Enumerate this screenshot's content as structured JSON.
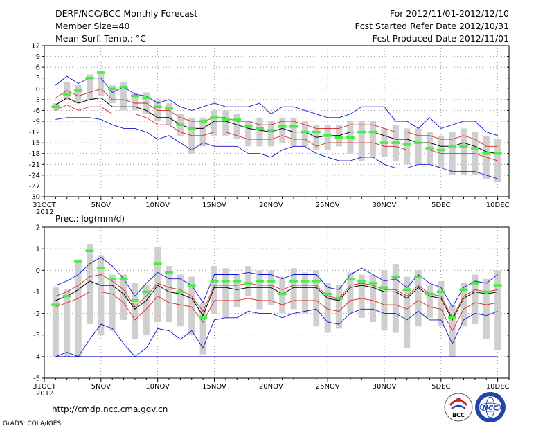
{
  "header": {
    "title": "DERF/NCC/BCC Monthly Forecast",
    "member": "Member Size=40",
    "variable": "Mean Surf. Temp.: °C",
    "period": "For 2012/11/01-2012/12/10",
    "started": "Fcst Started Refer Date 2012/10/31",
    "produced": "Fcst Produced Date 2012/11/01"
  },
  "footer": {
    "url": "http://cmdp.ncc.cma.gov.cn",
    "credit": "GrADS: COLA/IGES",
    "bcc_logo_text": "BCC",
    "ncc_logo_text": "NCC"
  },
  "colors": {
    "box": "#cfcfcf",
    "obs": "#44ee44",
    "mean": "#000000",
    "band": "#dd2222",
    "extreme": "#1111cc",
    "grid": "#777777"
  },
  "chart_data": [
    {
      "type": "line",
      "title": "Mean Surf. Temp.: °C",
      "x_labels": [
        "31OCT",
        "5NOV",
        "10NOV",
        "15NOV",
        "20NOV",
        "25NOV",
        "30NOV",
        "5DEC",
        "10DEC"
      ],
      "x_sub_label": "2012",
      "x_days": [
        0,
        5,
        10,
        15,
        20,
        25,
        30,
        35,
        40
      ],
      "xlim": [
        0,
        41
      ],
      "ylim": [
        -30,
        12
      ],
      "y_ticks": [
        12,
        9,
        6,
        3,
        0,
        -3,
        -6,
        -9,
        -12,
        -15,
        -18,
        -21,
        -24,
        -27,
        -30
      ],
      "days": [
        1,
        2,
        3,
        4,
        5,
        6,
        7,
        8,
        9,
        10,
        11,
        12,
        13,
        14,
        15,
        16,
        17,
        18,
        19,
        20,
        21,
        22,
        23,
        24,
        25,
        26,
        27,
        28,
        29,
        30,
        31,
        32,
        33,
        34,
        35,
        36,
        37,
        38,
        39,
        40
      ],
      "series": [
        {
          "name": "max",
          "values": [
            1,
            3.5,
            1.5,
            3,
            3,
            -1,
            0.5,
            -1.5,
            -2,
            -4,
            -3,
            -5,
            -6,
            -5,
            -4,
            -5,
            -5,
            -5,
            -4,
            -7,
            -5,
            -5,
            -6,
            -7,
            -8,
            -8,
            -7,
            -5,
            -5,
            -5,
            -9,
            -9,
            -11,
            -8,
            -11,
            -10,
            -9,
            -9,
            -12,
            -13
          ]
        },
        {
          "name": "upper",
          "values": [
            -2.5,
            -0.5,
            -2,
            -1,
            0,
            -3,
            -3,
            -4,
            -4,
            -6,
            -6,
            -8,
            -9,
            -9,
            -8,
            -8,
            -9,
            -9,
            -10,
            -10,
            -9,
            -9,
            -10,
            -11,
            -11,
            -11,
            -10,
            -10,
            -10,
            -11,
            -12,
            -12,
            -13,
            -13,
            -14,
            -14,
            -13,
            -14,
            -16,
            -16
          ]
        },
        {
          "name": "mean",
          "values": [
            -4.5,
            -2.5,
            -4,
            -3,
            -2.5,
            -5,
            -5,
            -5,
            -6,
            -8,
            -8,
            -10,
            -11,
            -11,
            -9,
            -9,
            -10,
            -11,
            -11.5,
            -12,
            -11,
            -12,
            -12,
            -13.5,
            -13,
            -13,
            -12,
            -12,
            -12,
            -13,
            -14,
            -14,
            -15,
            -15,
            -16,
            -16,
            -15,
            -16,
            -17.5,
            -18
          ]
        },
        {
          "name": "lower",
          "values": [
            -6,
            -4.5,
            -6,
            -5,
            -5,
            -7,
            -7,
            -7,
            -8,
            -10,
            -10,
            -12,
            -13,
            -13,
            -12,
            -12,
            -13,
            -14,
            -14,
            -14,
            -13,
            -14,
            -14,
            -16,
            -15,
            -15,
            -15,
            -15,
            -15,
            -16,
            -16,
            -17,
            -17,
            -17,
            -18,
            -18,
            -18,
            -18,
            -19,
            -20
          ]
        },
        {
          "name": "min",
          "values": [
            -8.5,
            -8,
            -8,
            -8,
            -8.5,
            -10,
            -11,
            -11,
            -12,
            -14,
            -13,
            -15,
            -17,
            -15,
            -16,
            -16,
            -16,
            -18,
            -18,
            -19,
            -17,
            -16,
            -16,
            -18,
            -19,
            -20,
            -20,
            -19,
            -19,
            -21,
            -22,
            -22,
            -21,
            -21,
            -22,
            -23,
            -23,
            -23,
            -24,
            -25
          ]
        },
        {
          "name": "observed",
          "values": [
            -5,
            -1.5,
            -0.5,
            3,
            4.5,
            0,
            0.5,
            -2,
            -2.5,
            -5,
            -5.5,
            -10,
            -11,
            -9,
            -8,
            -8.5,
            -8.5,
            -10.5,
            -11,
            -11.5,
            -10.5,
            -10.5,
            -12,
            -12,
            -13,
            -13.5,
            -13.5,
            -12,
            -12,
            -15,
            -15,
            -15.5,
            -15,
            -16.5,
            -17,
            -16,
            -16,
            -16.5,
            -18,
            -18
          ]
        },
        {
          "name": "box_high",
          "values": [
            -4,
            2,
            1,
            4,
            5,
            1,
            2,
            -1,
            -1,
            -3,
            -4,
            -7,
            -8,
            -8,
            -6,
            -6,
            -7,
            -9,
            -8,
            -9,
            -8,
            -8,
            -9,
            -10,
            -10,
            -10,
            -9,
            -9,
            -9,
            -11,
            -10,
            -11,
            -11,
            -12,
            -13,
            -12,
            -11,
            -12,
            -13,
            -14
          ]
        },
        {
          "name": "box_low",
          "values": [
            -6,
            -3,
            -4,
            -3,
            -2,
            -4,
            -6,
            -6,
            -7,
            -9,
            -10,
            -13,
            -18,
            -16,
            -13,
            -13,
            -14,
            -16,
            -16,
            -16,
            -15,
            -16,
            -16,
            -17,
            -17,
            -16,
            -18,
            -20,
            -19,
            -19,
            -20,
            -21,
            -21,
            -21,
            -22,
            -24,
            -24,
            -24,
            -25,
            -26
          ]
        }
      ]
    },
    {
      "type": "line",
      "title": "Prec.: log(mm/d)",
      "x_labels": [
        "31OCT",
        "5NOV",
        "10NOV",
        "15NOV",
        "20NOV",
        "25NOV",
        "30NOV",
        "5DEC",
        "10DEC"
      ],
      "x_sub_label": "2012",
      "x_days": [
        0,
        5,
        10,
        15,
        20,
        25,
        30,
        35,
        40
      ],
      "xlim": [
        0,
        41
      ],
      "ylim": [
        -5,
        2
      ],
      "y_ticks": [
        2,
        1,
        0,
        -1,
        -2,
        -3,
        -4,
        -5
      ],
      "days": [
        1,
        2,
        3,
        4,
        5,
        6,
        7,
        8,
        9,
        10,
        11,
        12,
        13,
        14,
        15,
        16,
        17,
        18,
        19,
        20,
        21,
        22,
        23,
        24,
        25,
        26,
        27,
        28,
        29,
        30,
        31,
        32,
        33,
        34,
        35,
        36,
        37,
        38,
        39,
        40
      ],
      "series": [
        {
          "name": "max",
          "values": [
            -0.7,
            -0.5,
            -0.2,
            0.3,
            0.6,
            0.2,
            -0.4,
            -1.2,
            -0.6,
            -0.1,
            -0.4,
            -0.4,
            -0.7,
            -1.5,
            -0.2,
            -0.2,
            -0.2,
            -0.1,
            -0.2,
            -0.2,
            -0.4,
            -0.2,
            -0.2,
            -0.2,
            -0.8,
            -0.9,
            -0.2,
            0.1,
            -0.2,
            -0.5,
            -0.4,
            -0.8,
            -0.2,
            -0.6,
            -0.8,
            -1.7,
            -0.8,
            -0.5,
            -0.6,
            -0.2
          ]
        },
        {
          "name": "upper",
          "values": [
            -1.2,
            -1.0,
            -0.7,
            -0.3,
            -0.2,
            -0.5,
            -0.9,
            -1.7,
            -1.2,
            -0.6,
            -0.8,
            -0.9,
            -1.2,
            -1.9,
            -0.7,
            -0.7,
            -0.7,
            -0.6,
            -0.7,
            -0.7,
            -0.9,
            -0.7,
            -0.7,
            -0.7,
            -1.2,
            -1.3,
            -0.7,
            -0.6,
            -0.7,
            -0.9,
            -0.9,
            -1.2,
            -0.7,
            -1.1,
            -1.2,
            -2.2,
            -1.2,
            -0.9,
            -1.0,
            -0.9
          ]
        },
        {
          "name": "mean",
          "values": [
            -1.4,
            -1.2,
            -0.9,
            -0.5,
            -0.7,
            -0.7,
            -1.1,
            -1.8,
            -1.4,
            -0.7,
            -1.0,
            -1.1,
            -1.3,
            -2.1,
            -0.8,
            -0.8,
            -0.9,
            -0.8,
            -0.8,
            -0.8,
            -1.1,
            -0.8,
            -0.8,
            -0.8,
            -1.3,
            -1.4,
            -0.8,
            -0.7,
            -0.8,
            -1.0,
            -1.0,
            -1.3,
            -0.8,
            -1.2,
            -1.3,
            -2.3,
            -1.3,
            -1.0,
            -1.1,
            -1.0
          ]
        },
        {
          "name": "lower",
          "values": [
            -1.7,
            -1.5,
            -1.3,
            -1.0,
            -1.0,
            -1.1,
            -1.5,
            -2.3,
            -1.8,
            -1.2,
            -1.5,
            -1.6,
            -1.7,
            -2.4,
            -1.4,
            -1.4,
            -1.4,
            -1.3,
            -1.4,
            -1.4,
            -1.6,
            -1.4,
            -1.4,
            -1.4,
            -1.8,
            -1.9,
            -1.4,
            -1.3,
            -1.4,
            -1.6,
            -1.6,
            -1.8,
            -1.4,
            -1.7,
            -1.8,
            -2.8,
            -1.8,
            -1.5,
            -1.6,
            -1.5
          ]
        },
        {
          "name": "min",
          "values": [
            -4.0,
            -3.8,
            -4.0,
            -3.2,
            -2.5,
            -2.7,
            -3.4,
            -4.0,
            -3.6,
            -2.7,
            -2.8,
            -3.2,
            -2.8,
            -3.6,
            -2.3,
            -2.2,
            -2.2,
            -1.9,
            -2.0,
            -2.0,
            -2.2,
            -2.0,
            -1.9,
            -1.8,
            -2.4,
            -2.5,
            -2.0,
            -1.8,
            -1.8,
            -2.0,
            -2.0,
            -2.3,
            -1.9,
            -2.3,
            -2.3,
            -3.4,
            -2.3,
            -2.0,
            -2.1,
            -1.9
          ]
        },
        {
          "name": "observed",
          "values": [
            -1.6,
            -1.2,
            0.4,
            0.9,
            0.1,
            -0.4,
            -0.4,
            -1.4,
            -1.0,
            0.3,
            -0.1,
            -1.0,
            -0.7,
            -2.2,
            -0.5,
            -0.5,
            -0.5,
            -0.6,
            -0.5,
            -0.5,
            -1.1,
            -0.5,
            -0.5,
            -0.5,
            -1.1,
            -1.3,
            -0.4,
            -0.5,
            -0.6,
            -0.8,
            -0.3,
            -0.9,
            -0.3,
            -1.1,
            -1.0,
            -2.2,
            -0.9,
            -0.6,
            -1.0,
            -0.7
          ]
        },
        {
          "name": "box_high",
          "values": [
            -0.8,
            -0.9,
            0.5,
            1.2,
            0.7,
            -0.2,
            -0.2,
            -0.6,
            -0.7,
            1.1,
            0.2,
            -0.2,
            -0.3,
            -1.5,
            0.2,
            0.1,
            -0.2,
            0.2,
            0.0,
            0.0,
            -0.3,
            0.1,
            -0.1,
            0.0,
            -0.6,
            -0.7,
            -0.1,
            -0.2,
            -0.2,
            0.0,
            0.3,
            -0.3,
            0.0,
            -0.7,
            -0.5,
            -1.6,
            -0.6,
            -0.2,
            -0.4,
            0.0
          ]
        },
        {
          "name": "box_low",
          "values": [
            -4.0,
            -4.0,
            -4.0,
            -2.5,
            -3.0,
            -2.8,
            -2.3,
            -3.2,
            -3.0,
            -2.4,
            -2.4,
            -2.6,
            -3.0,
            -3.9,
            -2.0,
            -2.2,
            -1.7,
            -1.2,
            -1.8,
            -1.6,
            -2.0,
            -1.8,
            -2.0,
            -2.6,
            -2.9,
            -2.7,
            -2.0,
            -2.2,
            -2.4,
            -2.8,
            -2.9,
            -3.6,
            -2.6,
            -2.2,
            -2.6,
            -4.0,
            -2.6,
            -2.5,
            -3.2,
            -3.7
          ]
        }
      ],
      "baseline": -4
    }
  ]
}
